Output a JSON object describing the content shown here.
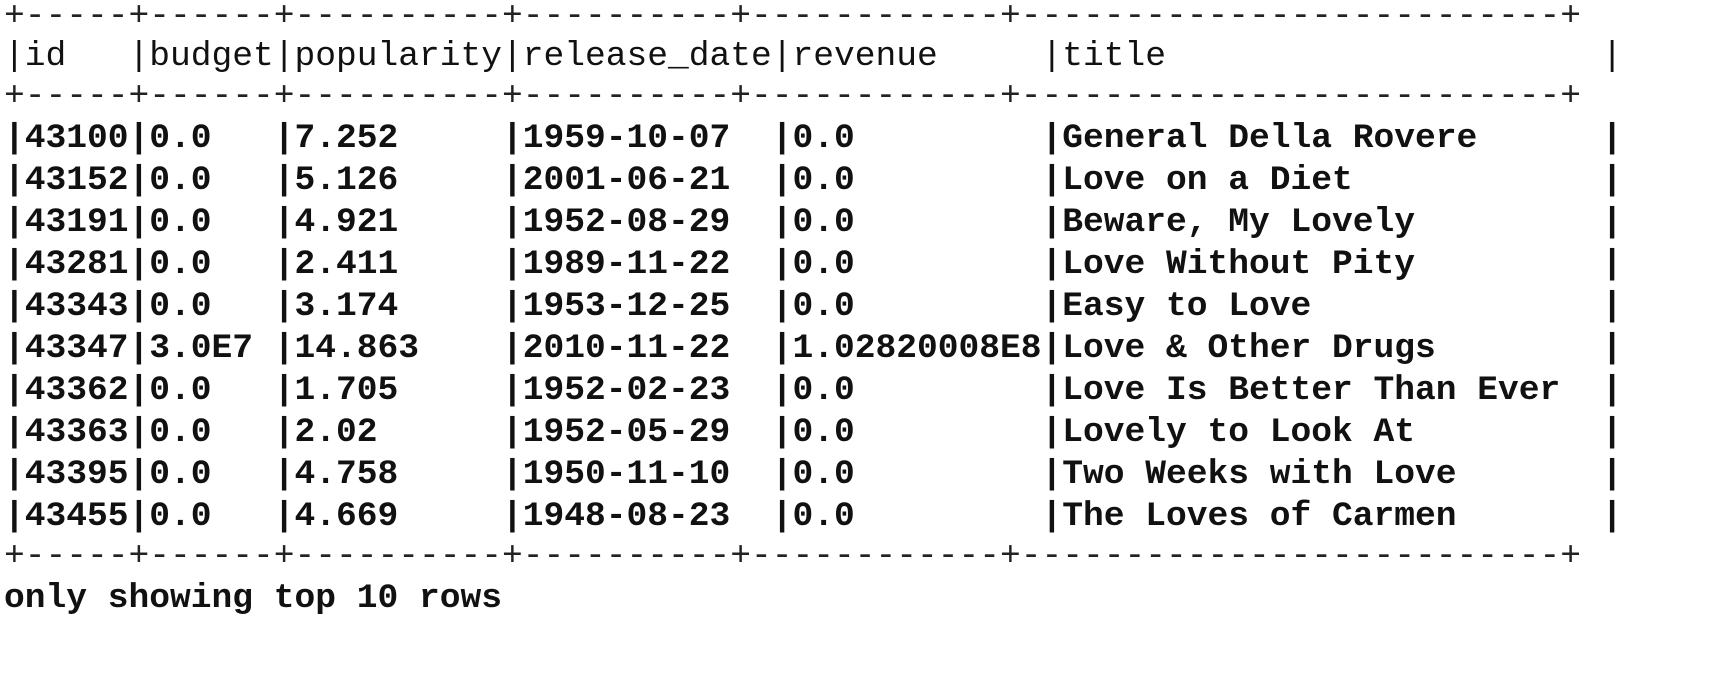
{
  "table": {
    "border_top": "+-----+------+----------+----------+------------+--------------------------+",
    "header_line": "|id   |budget|popularity|release_date|revenue     |title                     |",
    "border_mid": "+-----+------+----------+----------+------------+--------------------------+",
    "columns": [
      "id",
      "budget",
      "popularity",
      "release_date",
      "revenue",
      "title"
    ],
    "rows": [
      {
        "line": "|43100|0.0   |7.252     |1959-10-07  |0.0         |General Della Rovere      |"
      },
      {
        "line": "|43152|0.0   |5.126     |2001-06-21  |0.0         |Love on a Diet            |"
      },
      {
        "line": "|43191|0.0   |4.921     |1952-08-29  |0.0         |Beware, My Lovely         |"
      },
      {
        "line": "|43281|0.0   |2.411     |1989-11-22  |0.0         |Love Without Pity         |"
      },
      {
        "line": "|43343|0.0   |3.174     |1953-12-25  |0.0         |Easy to Love              |"
      },
      {
        "line": "|43347|3.0E7 |14.863    |2010-11-22  |1.02820008E8|Love & Other Drugs        |"
      },
      {
        "line": "|43362|0.0   |1.705     |1952-02-23  |0.0         |Love Is Better Than Ever  |"
      },
      {
        "line": "|43363|0.0   |2.02      |1952-05-29  |0.0         |Lovely to Look At         |"
      },
      {
        "line": "|43395|0.0   |4.758     |1950-11-10  |0.0         |Two Weeks with Love       |"
      },
      {
        "line": "|43455|0.0   |4.669     |1948-08-23  |0.0         |The Loves of Carmen       |"
      }
    ],
    "border_bottom": "+-----+------+----------+----------+------------+--------------------------+"
  },
  "footer_text": "only showing top 10 rows"
}
